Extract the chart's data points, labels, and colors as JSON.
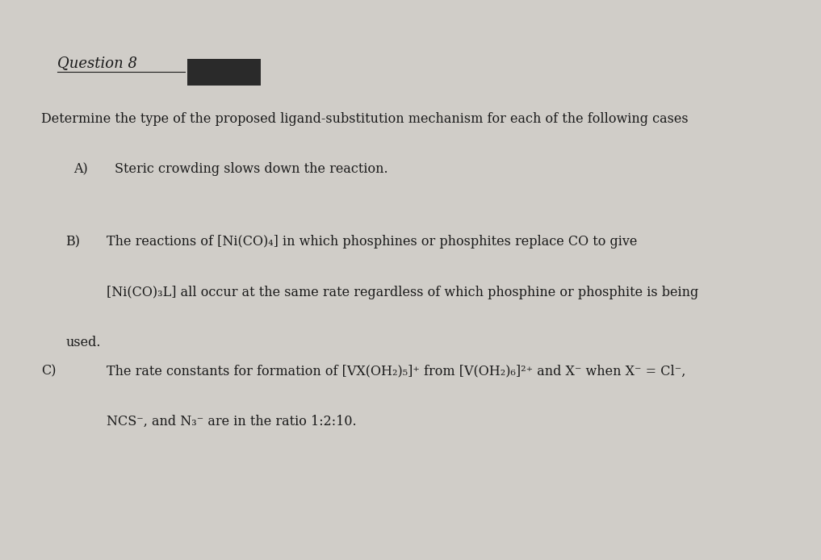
{
  "background_color": "#d0cdc8",
  "paper_color": "#e6e3de",
  "title": "Question 8",
  "title_fontsize": 13,
  "redacted_box_color": "#2a2a2a",
  "intro_line": "Determine the type of the proposed ligand-substitution mechanism for each of the following cases",
  "section_A_label": "A)",
  "section_A_text": "Steric crowding slows down the reaction.",
  "section_B_label": "B)",
  "section_B_line1": "The reactions of [Ni(CO)₄] in which phosphines or phosphites replace CO to give",
  "section_B_line2": "[Ni(CO)₃L] all occur at the same rate regardless of which phosphine or phosphite is being",
  "section_B_line3": "used.",
  "section_C_label": "C)",
  "section_C_line1": "The rate constants for formation of [VX(OH₂)₅]⁺ from [V(OH₂)₆]²⁺ and X⁻ when X⁻ = Cl⁻,",
  "section_C_line2": "NCS⁻, and N₃⁻ are in the ratio 1:2:10.",
  "font_family": "serif",
  "text_color": "#1a1a1a",
  "font_size_body": 11.5
}
